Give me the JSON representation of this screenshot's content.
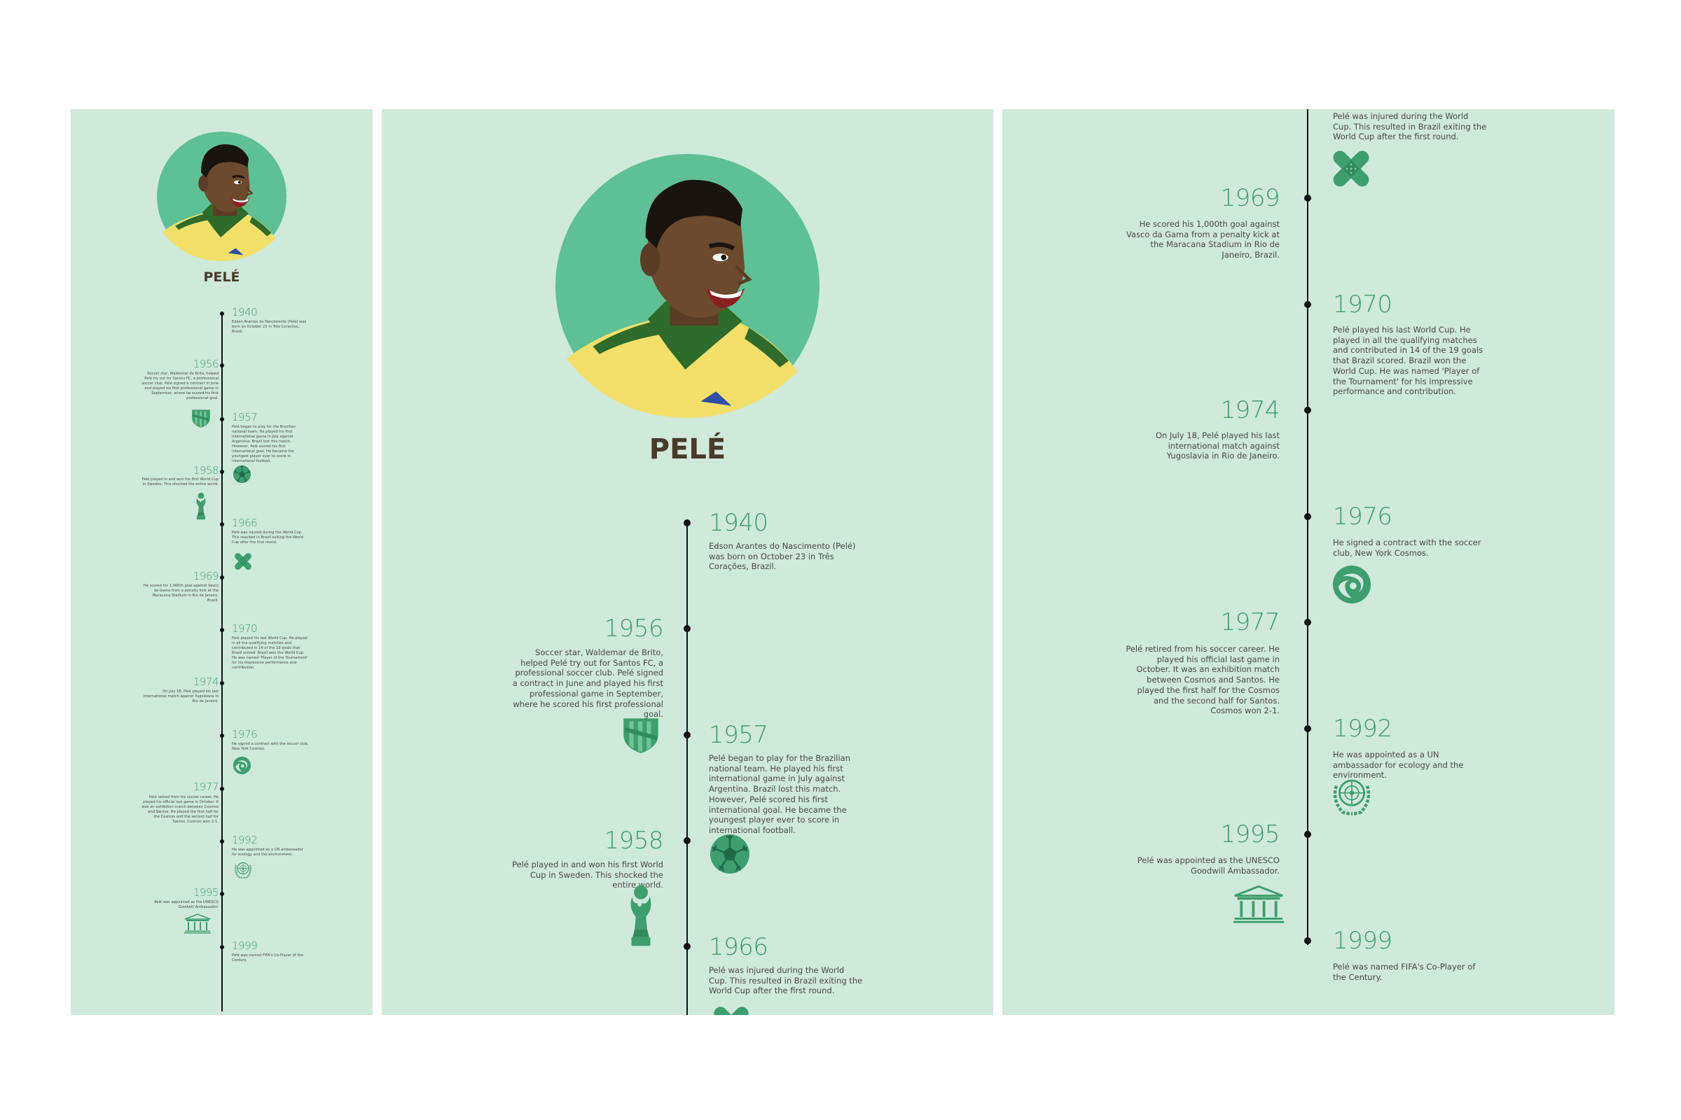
{
  "title": "PELÉ",
  "colors": {
    "panel": "#cfe9da",
    "accent": "#3e9e6e",
    "circle": "#5fc095",
    "skin": "#6b4a2d",
    "jersey": "#f2e06a",
    "collar": "#2f6b2a",
    "line": "#111111"
  },
  "events": [
    {
      "year": "1940",
      "text": "Edson Arantes do Nascimento (Pelé) was born on October 23 in Três Corações, Brazil.",
      "icon": ""
    },
    {
      "year": "1956",
      "text": "Soccer star, Waldemar de Brito, helped Pelé try out for Santos FC, a professional soccer club. Pelé signed a contract in June and played his first professional game in September, where he scored his first professional goal.",
      "icon": "santos-crest-icon"
    },
    {
      "year": "1957",
      "text": "Pelé began to play for the Brazilian national team. He played his first international game in July against Argentina. Brazil lost this match. However, Pelé scored his first international goal. He became the youngest player ever to score in international football.",
      "icon": "soccer-ball-icon"
    },
    {
      "year": "1958",
      "text": "Pelé played in and won his first World Cup in Sweden. This shocked the entire world.",
      "icon": "world-cup-trophy-icon"
    },
    {
      "year": "1966",
      "text": "Pelé was injured during the World Cup. This resulted in Brazil exiting the World Cup after the first round.",
      "icon": "bandage-icon"
    },
    {
      "year": "1969",
      "text": "He scored his 1,000th goal against Vasco da Gama from a penalty kick at the Maracana Stadium in Rio de Janeiro, Brazil.",
      "icon": ""
    },
    {
      "year": "1970",
      "text": "Pelé played his last World Cup. He played in all the qualifying matches and contributed in 14 of the 19 goals that Brazil scored. Brazil won the World Cup. He was named 'Player of the Tournament' for his impressive performance and contribution.",
      "icon": ""
    },
    {
      "year": "1974",
      "text": "On July 18, Pelé played his last international match against Yugoslavia in Rio de Janeiro.",
      "icon": ""
    },
    {
      "year": "1976",
      "text": "He signed a contract with the soccer club, New York Cosmos.",
      "icon": "cosmos-logo-icon"
    },
    {
      "year": "1977",
      "text": "Pelé retired from his soccer career. He played his official last game in October. It was an exhibition match between Cosmos and Santos. He played the first half for the Cosmos and the second half for Santos. Cosmos won 2-1.",
      "icon": ""
    },
    {
      "year": "1992",
      "text": "He was appointed as a UN ambassador for ecology and the environment.",
      "icon": "un-emblem-icon"
    },
    {
      "year": "1995",
      "text": "Pelé was appointed as the UNESCO Goodwill Ambassador.",
      "icon": "unesco-temple-icon"
    },
    {
      "year": "1999",
      "text": "Pelé was named FIFA's Co-Player of the Century.",
      "icon": ""
    }
  ]
}
